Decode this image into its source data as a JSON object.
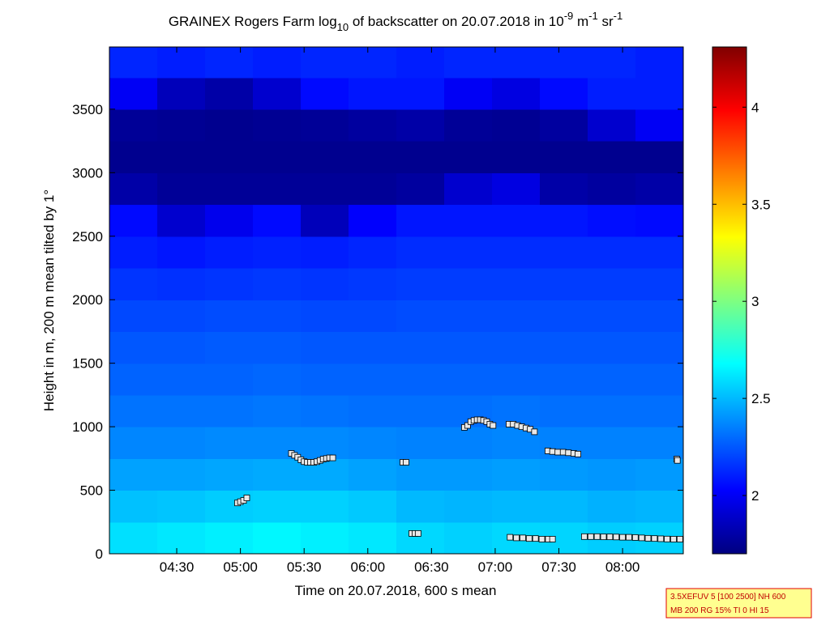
{
  "chart_data": {
    "type": "heatmap",
    "title": [
      "GRAINEX Rogers Farm log",
      "10",
      " of backscatter on 20.07.2018 in 10",
      "-9",
      " m",
      "-1",
      " sr",
      "-1"
    ],
    "xlabel": "Time on 20.07.2018, 600 s mean",
    "ylabel": "Height in m, 200 m mean tilted by 1°",
    "xlim": [
      238.3,
      508.6
    ],
    "xticks": [
      {
        "value": 270,
        "label": "04:30"
      },
      {
        "value": 300,
        "label": "05:00"
      },
      {
        "value": 330,
        "label": "05:30"
      },
      {
        "value": 360,
        "label": "06:00"
      },
      {
        "value": 390,
        "label": "06:30"
      },
      {
        "value": 420,
        "label": "07:00"
      },
      {
        "value": 450,
        "label": "07:30"
      },
      {
        "value": 480,
        "label": "08:00"
      }
    ],
    "ylim": [
      0,
      3990
    ],
    "yticks": [
      0,
      500,
      1000,
      1500,
      2000,
      2500,
      3000,
      3500
    ],
    "clim": [
      1.7,
      4.31
    ],
    "cticks": [
      2,
      2.5,
      3,
      3.5,
      4
    ],
    "colormap": "jet",
    "x_edges": [
      238.3,
      260.8,
      283.4,
      305.9,
      328.4,
      350.9,
      373.5,
      396,
      418.5,
      441,
      463.6,
      486.1,
      508.6
    ],
    "y_edges": [
      0,
      250,
      500,
      750,
      1000,
      1250,
      1500,
      1750,
      2000,
      2250,
      2500,
      2750,
      3000,
      3250,
      3500,
      3750,
      3990
    ],
    "z": [
      [
        2.6,
        2.62,
        2.64,
        2.66,
        2.64,
        2.62,
        2.58,
        2.56,
        2.58,
        2.57,
        2.55,
        2.56
      ],
      [
        2.52,
        2.53,
        2.55,
        2.56,
        2.56,
        2.54,
        2.5,
        2.49,
        2.5,
        2.5,
        2.48,
        2.49
      ],
      [
        2.44,
        2.44,
        2.45,
        2.46,
        2.46,
        2.44,
        2.42,
        2.42,
        2.43,
        2.42,
        2.41,
        2.42
      ],
      [
        2.37,
        2.37,
        2.38,
        2.38,
        2.38,
        2.37,
        2.36,
        2.36,
        2.37,
        2.36,
        2.36,
        2.36
      ],
      [
        2.32,
        2.32,
        2.32,
        2.33,
        2.32,
        2.31,
        2.31,
        2.31,
        2.32,
        2.31,
        2.31,
        2.31
      ],
      [
        2.28,
        2.28,
        2.28,
        2.29,
        2.28,
        2.28,
        2.28,
        2.28,
        2.28,
        2.28,
        2.28,
        2.28
      ],
      [
        2.25,
        2.25,
        2.26,
        2.26,
        2.25,
        2.25,
        2.25,
        2.25,
        2.25,
        2.25,
        2.25,
        2.25
      ],
      [
        2.21,
        2.21,
        2.22,
        2.22,
        2.21,
        2.21,
        2.22,
        2.22,
        2.22,
        2.22,
        2.22,
        2.22
      ],
      [
        2.16,
        2.15,
        2.16,
        2.17,
        2.16,
        2.17,
        2.18,
        2.18,
        2.18,
        2.18,
        2.18,
        2.18
      ],
      [
        2.1,
        2.08,
        2.1,
        2.11,
        2.1,
        2.12,
        2.14,
        2.14,
        2.14,
        2.14,
        2.14,
        2.14
      ],
      [
        2.05,
        1.9,
        1.98,
        2.05,
        1.85,
        2.02,
        2.08,
        2.08,
        2.08,
        2.08,
        2.06,
        2.05
      ],
      [
        1.8,
        1.76,
        1.76,
        1.76,
        1.76,
        1.76,
        1.78,
        1.9,
        1.95,
        1.8,
        1.78,
        1.8
      ],
      [
        1.74,
        1.74,
        1.74,
        1.74,
        1.74,
        1.74,
        1.74,
        1.74,
        1.74,
        1.74,
        1.74,
        1.74
      ],
      [
        1.76,
        1.75,
        1.74,
        1.75,
        1.76,
        1.78,
        1.8,
        1.76,
        1.75,
        1.78,
        1.9,
        2.0
      ],
      [
        2.0,
        1.85,
        1.8,
        1.9,
        2.05,
        2.08,
        2.08,
        2.0,
        1.95,
        2.05,
        2.1,
        2.1
      ],
      [
        2.12,
        2.1,
        2.12,
        2.1,
        2.12,
        2.12,
        2.1,
        2.12,
        2.12,
        2.12,
        2.12,
        2.1
      ]
    ],
    "markers": {
      "x": [
        298.6,
        300,
        301.5,
        303,
        324,
        325.5,
        327,
        328.5,
        330,
        331.5,
        333,
        334.5,
        336,
        337.5,
        339,
        340.5,
        342,
        343.5,
        376.5,
        378,
        380.7,
        382.2,
        383.7,
        405.5,
        407,
        408.5,
        410,
        411.5,
        413,
        414.5,
        416,
        417.5,
        419,
        426.5,
        428.5,
        430.5,
        432.5,
        434.5,
        436.5,
        438.5,
        427,
        430,
        433,
        436,
        439,
        442,
        445,
        447,
        444.8,
        447,
        449.5,
        452,
        454.5,
        457,
        459,
        462,
        465,
        468,
        471,
        474,
        477,
        480,
        483,
        486,
        489,
        492,
        495,
        498,
        501,
        504,
        507,
        505.5,
        505.8
      ],
      "y": [
        400,
        410,
        420,
        440,
        790,
        775,
        760,
        740,
        725,
        720,
        720,
        720,
        725,
        735,
        745,
        750,
        755,
        755,
        720,
        720,
        160,
        160,
        160,
        995,
        1010,
        1040,
        1050,
        1055,
        1055,
        1050,
        1040,
        1020,
        1010,
        1020,
        1020,
        1010,
        1000,
        990,
        980,
        960,
        130,
        125,
        125,
        120,
        120,
        115,
        115,
        115,
        810,
        805,
        800,
        800,
        795,
        790,
        785,
        135,
        135,
        135,
        133,
        133,
        132,
        130,
        130,
        128,
        125,
        122,
        120,
        118,
        116,
        115,
        115,
        745,
        735
      ],
      "fill": "#e8e8e8",
      "edge": "#000000"
    },
    "annotation": [
      "3.5XEFUV 5 [100 2500] NH 600",
      "MB 200 RG 15% TI 0 HI 15"
    ]
  }
}
